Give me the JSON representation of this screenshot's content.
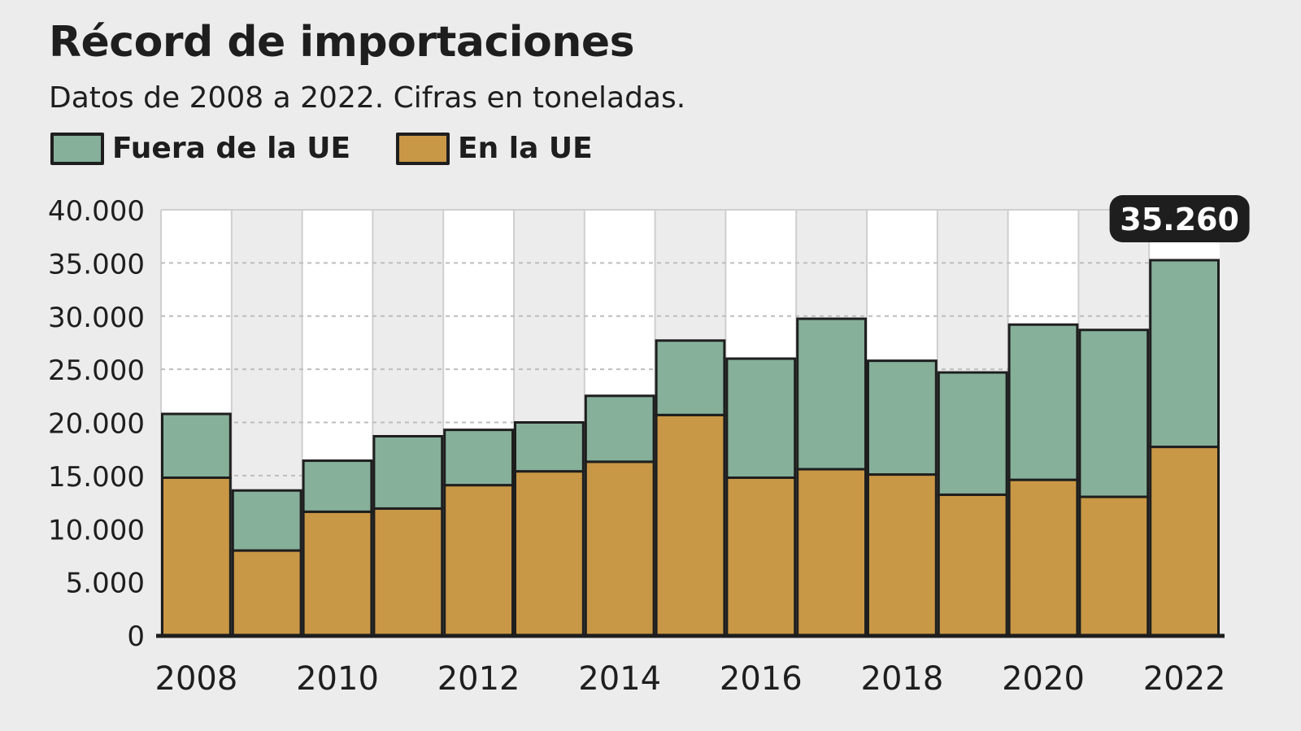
{
  "chart_data": {
    "type": "bar",
    "stacked": true,
    "title": "Récord de importaciones",
    "subtitle": "Datos de 2008 a 2022. Cifras en toneladas.",
    "categories": [
      "2008",
      "2009",
      "2010",
      "2011",
      "2012",
      "2013",
      "2014",
      "2015",
      "2016",
      "2017",
      "2018",
      "2019",
      "2020",
      "2021",
      "2022"
    ],
    "x_tick_labels": [
      "2008",
      "2010",
      "2012",
      "2014",
      "2016",
      "2018",
      "2020",
      "2022"
    ],
    "series": [
      {
        "name": "En la UE",
        "color": "#c99846",
        "values": [
          14800,
          7950,
          11600,
          11900,
          14100,
          15400,
          16300,
          20700,
          14800,
          15600,
          15100,
          13200,
          14600,
          13000,
          17700
        ]
      },
      {
        "name": "Fuera de la UE",
        "color": "#86b09a",
        "values": [
          6000,
          5650,
          4800,
          6800,
          5200,
          4600,
          6200,
          7000,
          11200,
          14150,
          10700,
          11500,
          14600,
          15700,
          17560
        ]
      }
    ],
    "legend": [
      "Fuera de la UE",
      "En la UE"
    ],
    "legend_position": "top-left",
    "annotation": {
      "category": "2022",
      "text": "35.260"
    },
    "y_ticks": [
      "0",
      "5.000",
      "10.000",
      "15.000",
      "20.000",
      "25.000",
      "30.000",
      "35.000",
      "40.000"
    ],
    "ylim": [
      0,
      40000
    ],
    "grid": true,
    "xlabel": "",
    "ylabel": ""
  }
}
